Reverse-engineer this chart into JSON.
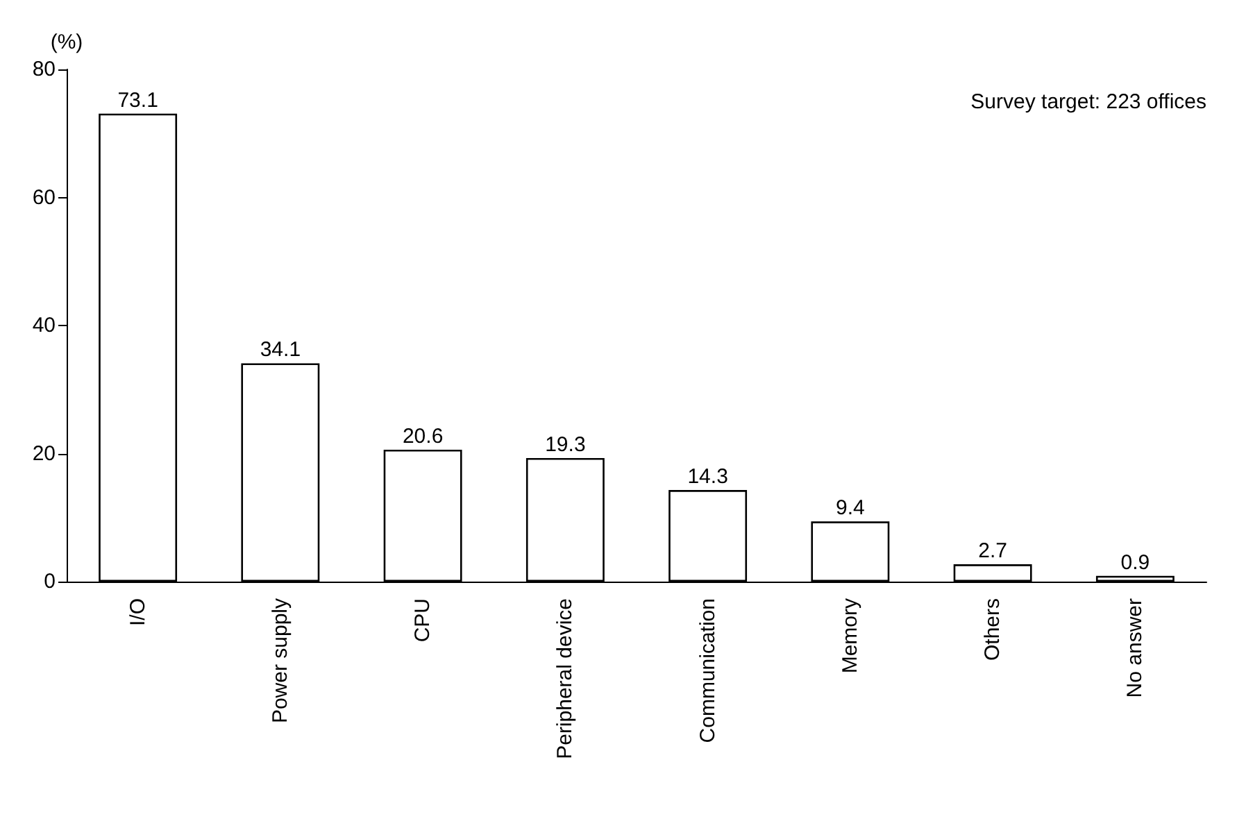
{
  "chart_data": {
    "type": "bar",
    "ylabel": "(%)",
    "categories": [
      "I/O",
      "Power supply",
      "CPU",
      "Peripheral device",
      "Communication",
      "Memory",
      "Others",
      "No answer"
    ],
    "values": [
      73.1,
      34.1,
      20.6,
      19.3,
      14.3,
      9.4,
      2.7,
      0.9
    ],
    "color": "#ffffff",
    "ylim": [
      0,
      80
    ],
    "yticks": [
      0,
      20,
      40,
      60,
      80
    ],
    "data_labels": true,
    "grid": false,
    "annotations": [
      "Survey target: 223 offices"
    ]
  }
}
